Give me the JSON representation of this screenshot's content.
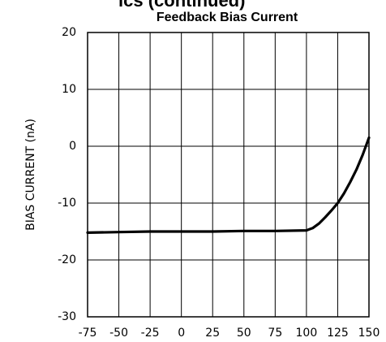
{
  "page_heading": "ics (continued)",
  "chart_data": {
    "type": "line",
    "title": "Feedback Bias Current",
    "y_label": "BIAS CURRENT (nA)",
    "x": [
      -75,
      -50,
      -25,
      0,
      25,
      50,
      75,
      100,
      105,
      110,
      115,
      120,
      125,
      130,
      135,
      140,
      145,
      150
    ],
    "series": [
      {
        "name": "Feedback Bias Current",
        "color": "#000000",
        "values": [
          -15.2,
          -15.1,
          -15.0,
          -15.0,
          -15.0,
          -14.9,
          -14.9,
          -14.8,
          -14.4,
          -13.6,
          -12.5,
          -11.3,
          -10,
          -8.3,
          -6.3,
          -4.1,
          -1.5,
          1.5
        ]
      }
    ],
    "xlim": [
      -75,
      150
    ],
    "xticks": [
      -75,
      -50,
      -25,
      0,
      25,
      50,
      75,
      100,
      125,
      150
    ],
    "ylim": [
      -30,
      20
    ],
    "yticks": [
      -30,
      -20,
      -10,
      0,
      10,
      20
    ],
    "grid": true,
    "legend": false
  }
}
